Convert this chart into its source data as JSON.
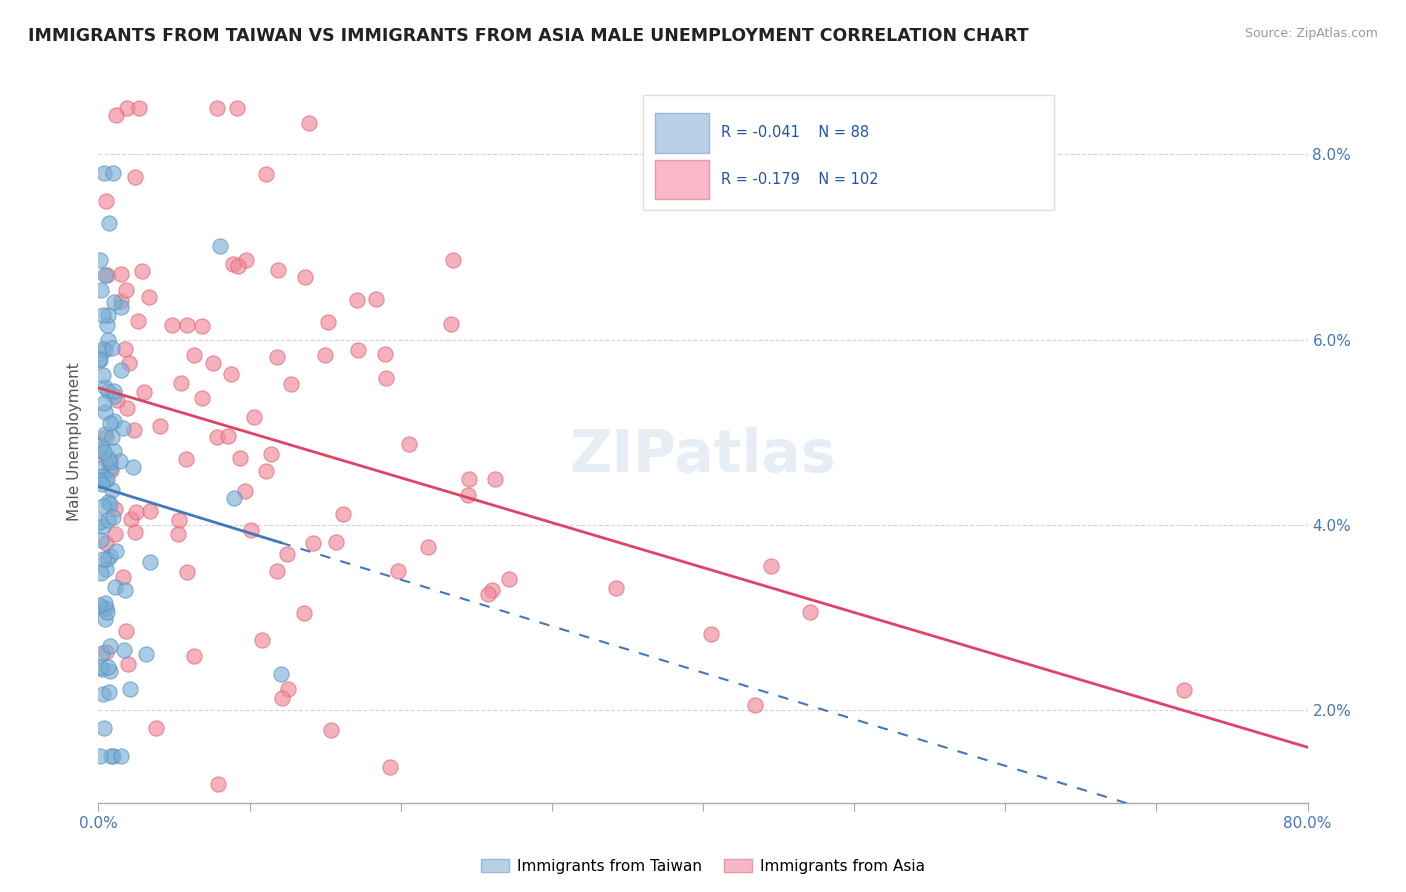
{
  "title": "IMMIGRANTS FROM TAIWAN VS IMMIGRANTS FROM ASIA MALE UNEMPLOYMENT CORRELATION CHART",
  "source": "Source: ZipAtlas.com",
  "ylabel": "Male Unemployment",
  "xmin": 0.0,
  "xmax": 80.0,
  "ymin": 1.0,
  "ymax": 8.8,
  "yticks": [
    2.0,
    4.0,
    6.0,
    8.0
  ],
  "taiwan_R": "-0.041",
  "taiwan_N": "88",
  "asia_R": "-0.179",
  "asia_N": "102",
  "taiwan_marker_color": "#7bafd4",
  "asia_marker_color": "#f08898",
  "taiwan_edge_color": "#5590c0",
  "asia_edge_color": "#e06070",
  "trend_taiwan_color": "#4477bb",
  "trend_asia_color": "#dd4466",
  "legend_taiwan_fill": "#b8d0e8",
  "legend_asia_fill": "#f8b8c8",
  "legend_taiwan_edge": "#9ab8d8",
  "legend_asia_edge": "#e898a8",
  "watermark": "ZIPatlas",
  "taiwan_seed": 123,
  "asia_seed": 456
}
